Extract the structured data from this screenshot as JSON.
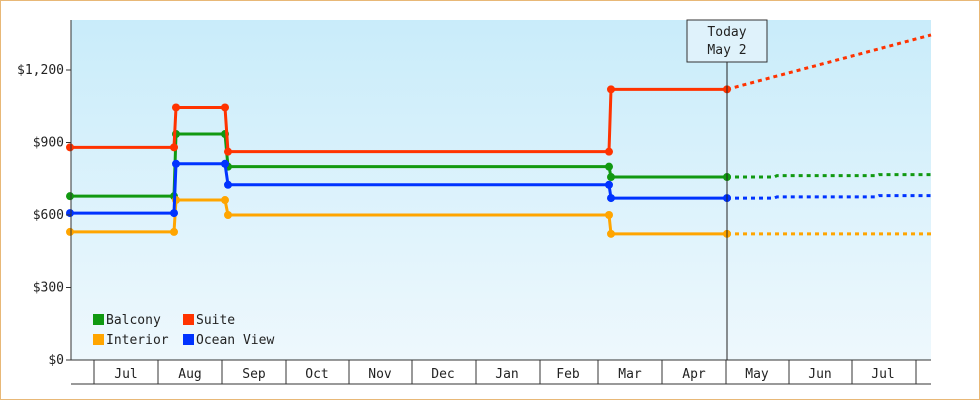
{
  "chart_data": {
    "type": "line",
    "step": true,
    "y_tick_labels": [
      "$0",
      "$300",
      "$600",
      "$900",
      "$1,200"
    ],
    "y_ticks": [
      0,
      300,
      600,
      900,
      1200
    ],
    "ylim": [
      0,
      1200
    ],
    "x_tick_labels": [
      "Jul",
      "Aug",
      "Sep",
      "Oct",
      "Nov",
      "Dec",
      "Jan",
      "Feb",
      "Mar",
      "Apr",
      "May",
      "Jun",
      "Jul"
    ],
    "today": {
      "line1": "Today",
      "line2": "May 2"
    },
    "legend_position": "bottom-left",
    "series": [
      {
        "name": "Balcony",
        "color": "#119911",
        "points": [
          [
            0,
            678
          ],
          [
            1.75,
            678
          ],
          [
            1.8,
            935
          ],
          [
            2.6,
            935
          ],
          [
            2.65,
            800
          ],
          [
            8.4,
            800
          ],
          [
            8.45,
            757
          ],
          [
            10.4,
            757
          ]
        ],
        "forecast": [
          [
            10.4,
            757
          ],
          [
            11.25,
            757
          ],
          [
            11.3,
            763
          ],
          [
            12.5,
            763
          ],
          [
            12.55,
            767
          ],
          [
            13.0,
            767
          ]
        ]
      },
      {
        "name": "Suite",
        "color": "#ff3300",
        "points": [
          [
            0,
            880
          ],
          [
            1.75,
            880
          ],
          [
            1.8,
            1045
          ],
          [
            2.6,
            1045
          ],
          [
            2.65,
            862
          ],
          [
            8.4,
            862
          ],
          [
            8.45,
            1120
          ],
          [
            10.4,
            1120
          ]
        ],
        "forecast": [
          [
            10.4,
            1120
          ],
          [
            13.0,
            1345
          ]
        ]
      },
      {
        "name": "Interior",
        "color": "#ffa500",
        "points": [
          [
            0,
            530
          ],
          [
            1.75,
            530
          ],
          [
            1.8,
            662
          ],
          [
            2.6,
            662
          ],
          [
            2.65,
            600
          ],
          [
            8.4,
            600
          ],
          [
            8.45,
            522
          ],
          [
            10.4,
            522
          ]
        ],
        "forecast": [
          [
            10.4,
            522
          ],
          [
            13.0,
            522
          ]
        ]
      },
      {
        "name": "Ocean View",
        "color": "#0033ff",
        "points": [
          [
            0,
            608
          ],
          [
            1.75,
            608
          ],
          [
            1.8,
            812
          ],
          [
            2.6,
            812
          ],
          [
            2.65,
            725
          ],
          [
            8.4,
            725
          ],
          [
            8.45,
            670
          ],
          [
            10.4,
            670
          ]
        ],
        "forecast": [
          [
            10.4,
            670
          ],
          [
            11.25,
            670
          ],
          [
            11.3,
            675
          ],
          [
            12.5,
            675
          ],
          [
            12.55,
            680
          ],
          [
            13.0,
            680
          ]
        ]
      }
    ]
  }
}
